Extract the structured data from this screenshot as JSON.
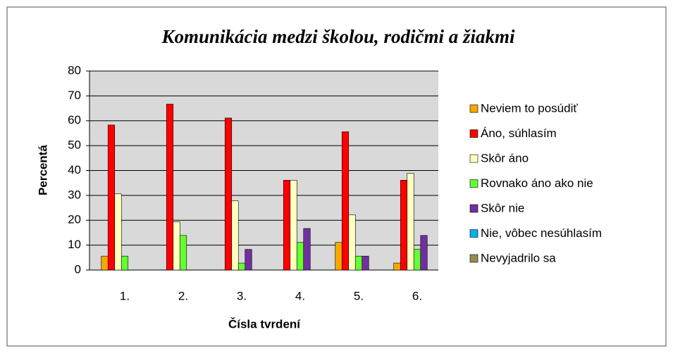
{
  "chart_data": {
    "type": "bar",
    "title": "Komunikácia medzi školou, rodičmi a žiakmi",
    "x_label": "Čísla tvrdení",
    "y_label": "Percentá",
    "categories": [
      "1.",
      "2.",
      "3.",
      "4.",
      "5.",
      "6."
    ],
    "series": [
      {
        "name": "Neviem to posúdiť",
        "color": "#F5A800",
        "values": [
          5.6,
          0,
          0,
          0,
          11.1,
          2.8
        ]
      },
      {
        "name": "Áno, súhlasím",
        "color": "#FF0000",
        "values": [
          58.3,
          66.7,
          61.1,
          36.1,
          55.6,
          36.1
        ]
      },
      {
        "name": "Skôr áno",
        "color": "#FFFFC0",
        "values": [
          30.6,
          19.4,
          27.8,
          36.1,
          22.2,
          38.9
        ]
      },
      {
        "name": "Rovnako áno ako nie",
        "color": "#66FF33",
        "values": [
          5.6,
          13.9,
          2.8,
          11.1,
          5.6,
          8.3
        ]
      },
      {
        "name": "Skôr nie",
        "color": "#7030A0",
        "values": [
          0,
          0,
          8.3,
          16.7,
          5.6,
          13.9
        ]
      },
      {
        "name": "Nie, vôbec nesúhlasím",
        "color": "#00B0F0",
        "values": [
          0,
          0,
          0,
          0,
          0,
          0
        ]
      },
      {
        "name": "Nevyjadrilo sa",
        "color": "#948A54",
        "values": [
          0,
          0,
          0,
          0,
          0,
          0
        ]
      }
    ],
    "ylim": [
      0,
      80
    ],
    "yticks": [
      0,
      10,
      20,
      30,
      40,
      50,
      60,
      70,
      80
    ],
    "grid": true,
    "legend": "right",
    "plot_background": "#D9D9D9"
  }
}
